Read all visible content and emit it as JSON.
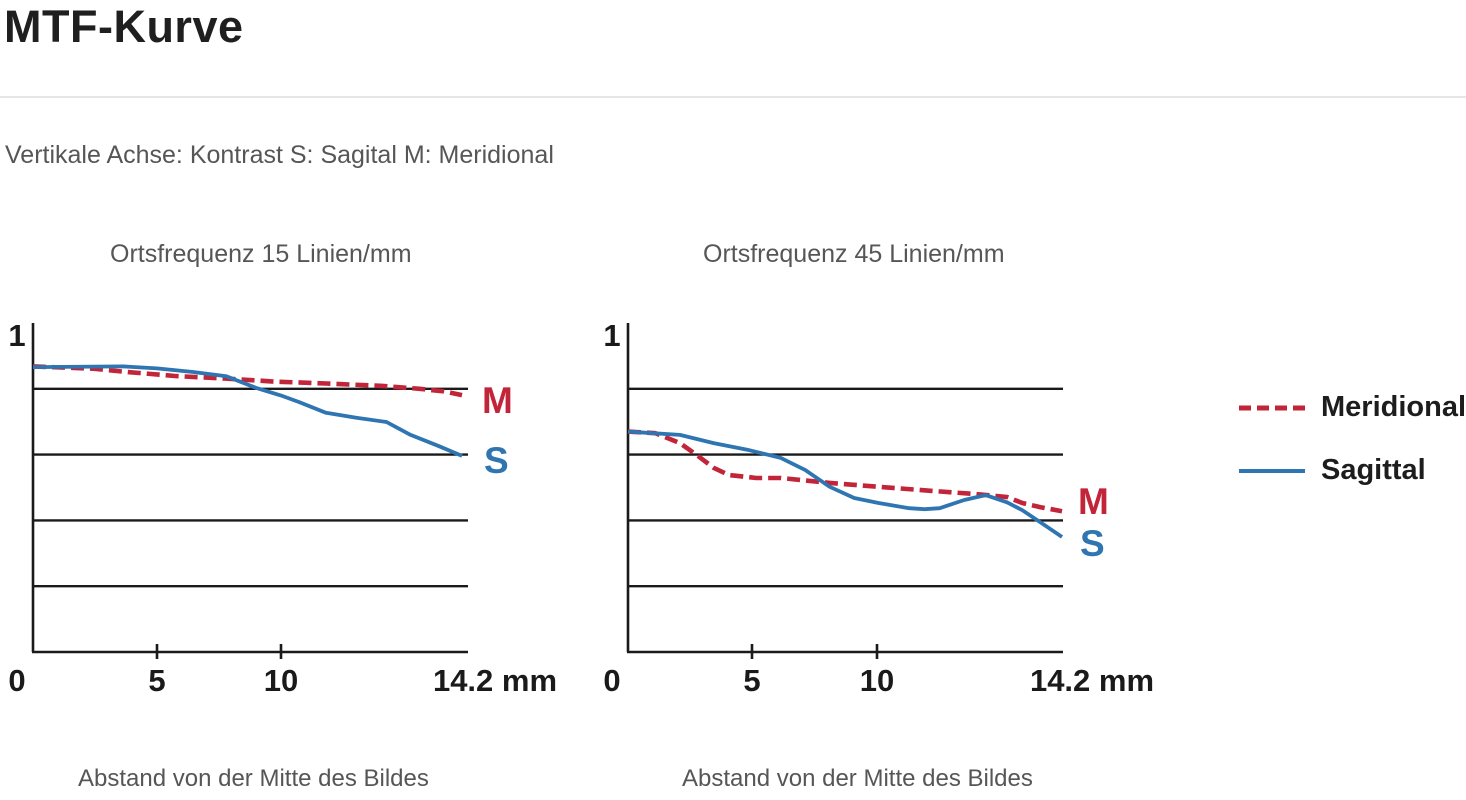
{
  "page": {
    "title": "MTF-Kurve",
    "subtitle": "Vertikale Achse: Kontrast S: Sagital M: Meridional"
  },
  "legend": {
    "items": [
      {
        "label": "Meridional",
        "color": "#c22439",
        "style": "dashed"
      },
      {
        "label": "Sagittal",
        "color": "#2e75b2",
        "style": "solid"
      }
    ]
  },
  "colors": {
    "meridional_red": "#c22439",
    "sagittal_blue": "#2e75b2",
    "axis_black": "#1a1a1a",
    "text_gray": "#565656",
    "text_dark": "#1f1f1f",
    "divider_gray": "#e6e6e6"
  },
  "chart_data": [
    {
      "type": "line",
      "title": "Ortsfrequenz 15 Linien/mm",
      "xlabel": "Abstand von der Mitte des Bildes",
      "ylabel": "Kontrast",
      "x_unit": "mm",
      "xlim": [
        0,
        14.2
      ],
      "ylim": [
        0,
        1
      ],
      "y_top_tick_label": "1",
      "x_tick_labels": [
        "0",
        "5",
        "10",
        "14.2 mm"
      ],
      "x_tick_values": [
        0,
        5,
        10,
        14.2
      ],
      "gridlines_y": [
        0.2,
        0.4,
        0.6,
        0.8
      ],
      "grid": true,
      "legend_position": "right-of-second-chart",
      "series": [
        {
          "name": "Meridional",
          "end_label": "M",
          "color": "#c22439",
          "dash": true,
          "x": [
            0,
            2.0,
            3.0,
            4.7,
            6.4,
            8.0,
            9.7,
            11.5,
            12.8,
            13.6,
            14.2
          ],
          "y": [
            0.868,
            0.861,
            0.852,
            0.839,
            0.831,
            0.822,
            0.816,
            0.809,
            0.8,
            0.792,
            0.781
          ]
        },
        {
          "name": "Sagittal",
          "end_label": "S",
          "color": "#2e75b2",
          "dash": false,
          "x": [
            0,
            3.0,
            4.1,
            5.3,
            6.4,
            7.4,
            8.2,
            8.8,
            9.7,
            10.7,
            11.7,
            12.5,
            13.4,
            14.2
          ],
          "y": [
            0.866,
            0.868,
            0.862,
            0.851,
            0.838,
            0.802,
            0.78,
            0.76,
            0.727,
            0.712,
            0.699,
            0.66,
            0.627,
            0.596
          ]
        }
      ]
    },
    {
      "type": "line",
      "title": "Ortsfrequenz 45 Linien/mm",
      "xlabel": "Abstand von der Mitte des Bildes",
      "ylabel": "Kontrast",
      "x_unit": "mm",
      "xlim": [
        0,
        14.2
      ],
      "ylim": [
        0,
        1
      ],
      "y_top_tick_label": "1",
      "x_tick_labels": [
        "0",
        "5",
        "10",
        "14.2 mm"
      ],
      "x_tick_values": [
        0,
        5,
        10,
        14.2
      ],
      "gridlines_y": [
        0.2,
        0.4,
        0.6,
        0.8
      ],
      "grid": true,
      "legend_position": "right",
      "series": [
        {
          "name": "Meridional",
          "end_label": "M",
          "color": "#c22439",
          "dash": true,
          "x": [
            0,
            0.9,
            1.7,
            2.3,
            2.8,
            3.3,
            4.2,
            5.0,
            6.6,
            8.2,
            9.9,
            11.4,
            12.4,
            12.9,
            13.5,
            14.2
          ],
          "y": [
            0.67,
            0.665,
            0.635,
            0.595,
            0.56,
            0.538,
            0.529,
            0.529,
            0.514,
            0.502,
            0.49,
            0.48,
            0.471,
            0.453,
            0.44,
            0.428
          ]
        },
        {
          "name": "Sagittal",
          "end_label": "S",
          "color": "#2e75b2",
          "dash": false,
          "x": [
            0,
            1.7,
            2.8,
            3.9,
            5.0,
            5.8,
            6.6,
            7.4,
            8.2,
            9.2,
            9.7,
            10.2,
            11.0,
            11.7,
            12.4,
            12.9,
            13.5,
            14.2
          ],
          "y": [
            0.67,
            0.66,
            0.635,
            0.615,
            0.59,
            0.553,
            0.502,
            0.468,
            0.453,
            0.437,
            0.434,
            0.437,
            0.462,
            0.477,
            0.455,
            0.431,
            0.394,
            0.35
          ]
        }
      ]
    }
  ]
}
